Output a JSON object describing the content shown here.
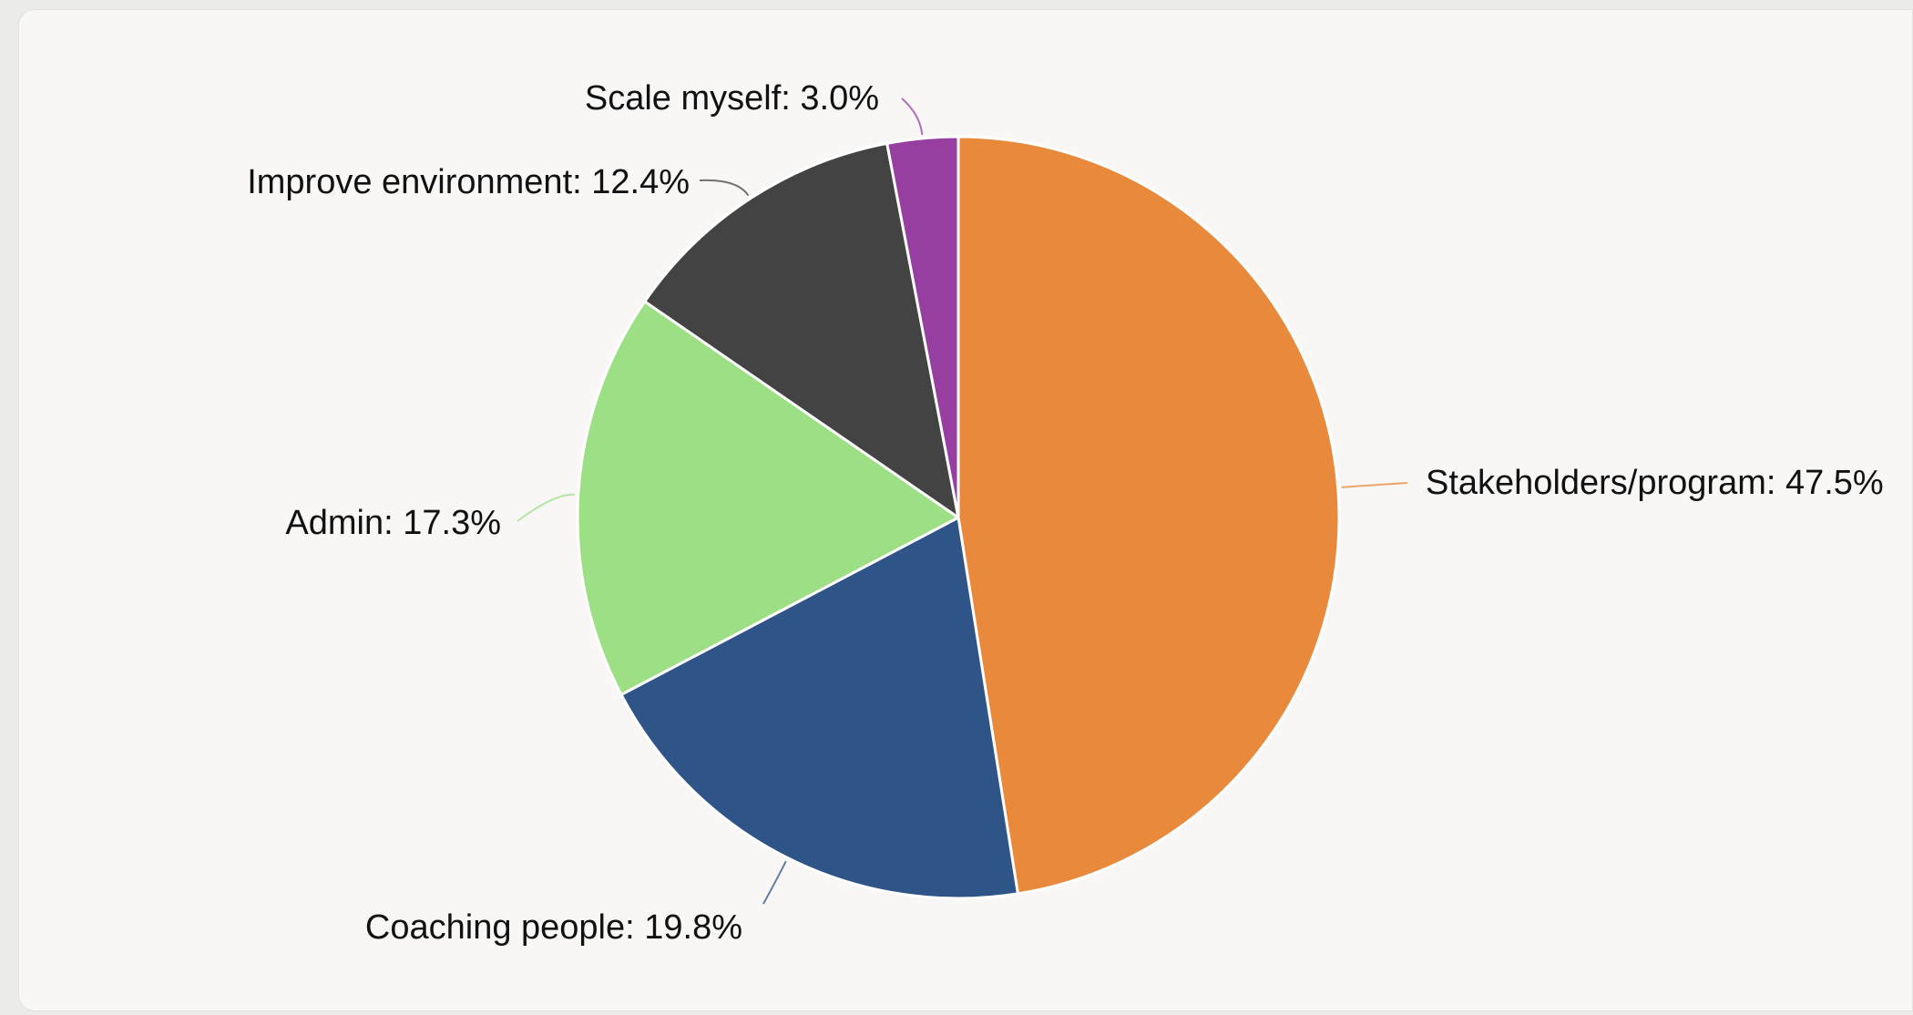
{
  "chart_data": {
    "type": "pie",
    "start_angle_deg": 0,
    "direction": "clockwise",
    "slices": [
      {
        "label": "Stakeholders/program",
        "value": 47.5,
        "display": "Stakeholders/program: 47.5%",
        "color": "#e8893c"
      },
      {
        "label": "Coaching people",
        "value": 19.8,
        "display": "Coaching people: 19.8%",
        "color": "#2f5488"
      },
      {
        "label": "Admin",
        "value": 17.3,
        "display": "Admin: 17.3%",
        "color": "#9ddf84"
      },
      {
        "label": "Improve environment",
        "value": 12.4,
        "display": "Improve environment: 12.4%",
        "color": "#434343"
      },
      {
        "label": "Scale myself",
        "value": 3.0,
        "display": "Scale myself: 3.0%",
        "color": "#963fa0"
      }
    ]
  }
}
